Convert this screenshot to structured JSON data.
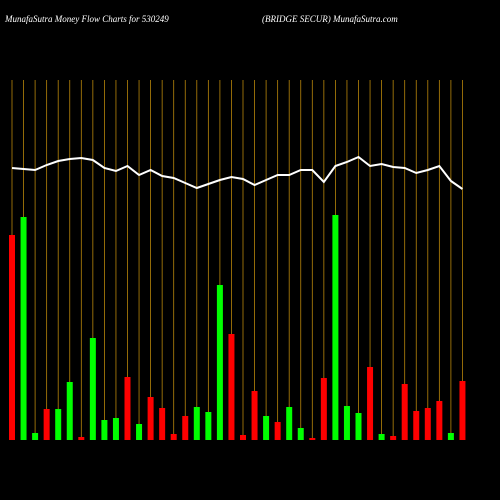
{
  "chart_data": {
    "type": "bar",
    "title": "MunafaSutra  Money Flow  Charts for 530249",
    "subtitle": "(BRIDGE SECUR) MunafaSutra.com",
    "ylim": [
      0,
      360
    ],
    "values": [
      205,
      223,
      7,
      31,
      31,
      58,
      3,
      102,
      20,
      22,
      63,
      16,
      43,
      32,
      6,
      24,
      33,
      28,
      155,
      106,
      5,
      49,
      24,
      18,
      33,
      12,
      2,
      62,
      225,
      34,
      27,
      73,
      6,
      4,
      56,
      29,
      32,
      39,
      7,
      59
    ],
    "colors": [
      "#ff0000",
      "#00ff00",
      "#00ff00",
      "#ff0000",
      "#00ff00",
      "#00ff00",
      "#ff0000",
      "#00ff00",
      "#00ff00",
      "#00ff00",
      "#ff0000",
      "#00ff00",
      "#ff0000",
      "#ff0000",
      "#ff0000",
      "#ff0000",
      "#00ff00",
      "#00ff00",
      "#00ff00",
      "#ff0000",
      "#ff0000",
      "#ff0000",
      "#00ff00",
      "#ff0000",
      "#00ff00",
      "#00ff00",
      "#ff0000",
      "#ff0000",
      "#00ff00",
      "#00ff00",
      "#00ff00",
      "#ff0000",
      "#00ff00",
      "#ff0000",
      "#ff0000",
      "#ff0000",
      "#ff0000",
      "#ff0000",
      "#00ff00",
      "#ff0000"
    ],
    "line_values": [
      272,
      271,
      270,
      275,
      279,
      281,
      282,
      280,
      272,
      269,
      274,
      265,
      270,
      264,
      262,
      257,
      252,
      256,
      260,
      263,
      261,
      255,
      260,
      265,
      265,
      270,
      270,
      258,
      274,
      278,
      283,
      274,
      276,
      273,
      272,
      267,
      270,
      274,
      259,
      251
    ],
    "line_color": "#ffffff",
    "grid_color": "#b8860b"
  }
}
